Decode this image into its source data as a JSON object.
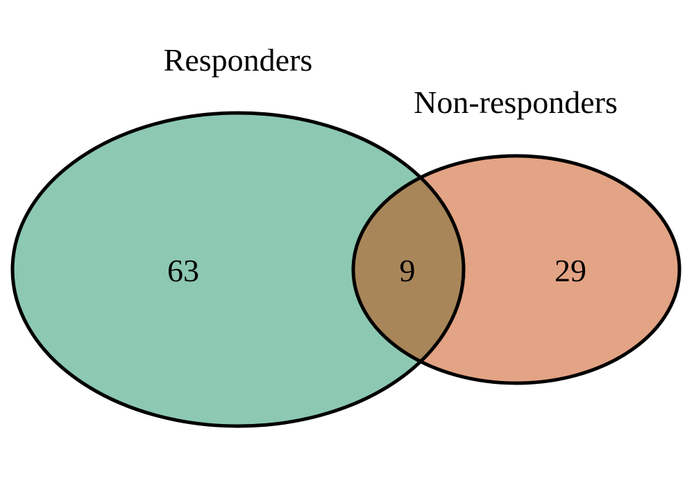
{
  "diagram": {
    "type": "venn",
    "sets": [
      {
        "name": "Responders",
        "only_count": "63",
        "color": "#8cc8b2"
      },
      {
        "name": "Non-responders",
        "only_count": "29",
        "color": "#e3a385"
      }
    ],
    "intersection": {
      "count": "9",
      "color": "#a88659"
    },
    "outline_color": "#000000"
  }
}
